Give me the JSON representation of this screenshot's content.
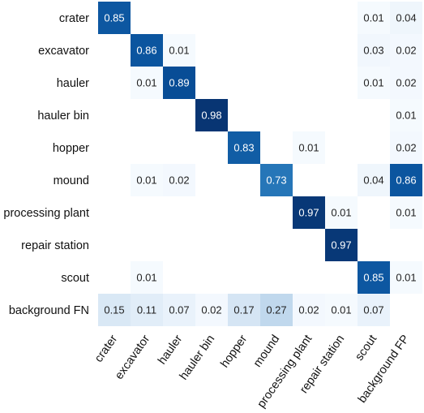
{
  "chart_data": {
    "type": "heatmap",
    "title": "",
    "xlabel": "",
    "ylabel": "",
    "row_labels": [
      "crater",
      "excavator",
      "hauler",
      "hauler bin",
      "hopper",
      "mound",
      "processing plant",
      "repair station",
      "scout",
      "background FN"
    ],
    "col_labels": [
      "crater",
      "excavator",
      "hauler",
      "hauler bin",
      "hopper",
      "mound",
      "processing plant",
      "repair station",
      "scout",
      "background FP"
    ],
    "values": [
      [
        0.85,
        null,
        null,
        null,
        null,
        null,
        null,
        null,
        0.01,
        0.04
      ],
      [
        null,
        0.86,
        0.01,
        null,
        null,
        null,
        null,
        null,
        0.03,
        0.02
      ],
      [
        null,
        0.01,
        0.89,
        null,
        null,
        null,
        null,
        null,
        0.01,
        0.02
      ],
      [
        null,
        null,
        null,
        0.98,
        null,
        null,
        null,
        null,
        null,
        0.01
      ],
      [
        null,
        null,
        null,
        null,
        0.83,
        null,
        0.01,
        null,
        null,
        0.02
      ],
      [
        null,
        0.01,
        0.02,
        null,
        null,
        0.73,
        null,
        null,
        0.04,
        0.86
      ],
      [
        null,
        null,
        null,
        null,
        null,
        null,
        0.97,
        0.01,
        null,
        0.01
      ],
      [
        null,
        null,
        null,
        null,
        null,
        null,
        null,
        0.97,
        null,
        null
      ],
      [
        null,
        0.01,
        null,
        null,
        null,
        null,
        null,
        null,
        0.85,
        0.01
      ],
      [
        0.15,
        0.11,
        0.07,
        0.02,
        0.17,
        0.27,
        0.02,
        0.01,
        0.07,
        null
      ]
    ],
    "colormap": "Blues",
    "value_range": [
      0,
      1
    ],
    "grid": false,
    "legend": "none"
  }
}
